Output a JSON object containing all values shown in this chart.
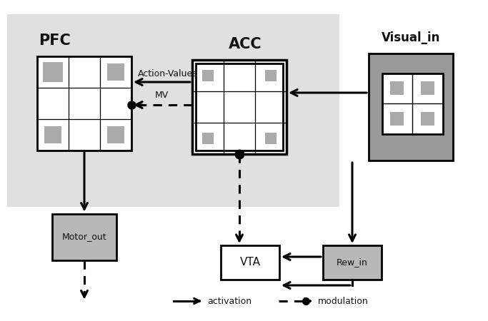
{
  "white": "#ffffff",
  "black": "#000000",
  "gray_bg": "#e0e0e0",
  "gray_dark": "#999999",
  "gray_medium": "#b8b8b8",
  "gray_sq": "#aaaaaa",
  "text_color": "#111111",
  "pfc_label": "PFC",
  "acc_label": "ACC",
  "visual_label": "Visual_in",
  "motor_label": "Motor_out",
  "vta_label": "VTA",
  "rew_label": "Rew_in",
  "action_values_label": "Action-Values",
  "mv_label": "MV",
  "legend_activation": "activation",
  "legend_modulation": "modulation",
  "figsize": [
    6.83,
    4.5
  ],
  "dpi": 100
}
